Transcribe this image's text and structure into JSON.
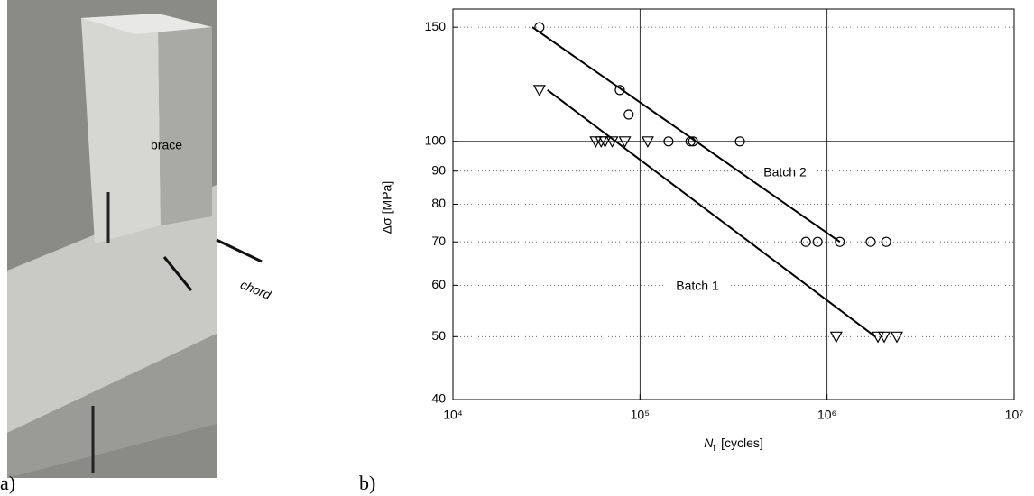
{
  "photo": {
    "brace_label": "brace",
    "chord_label": "chord"
  },
  "panel_labels": [
    "a)",
    "b)"
  ],
  "chart_data": {
    "type": "scatter",
    "x_label": {
      "symbol": "N",
      "subscript": "f",
      "unit": "[cycles]"
    },
    "y_label": "Δσ  [MPa]",
    "xscale": "log",
    "yscale": "log",
    "grid": true,
    "xlim": [
      10000,
      10000000
    ],
    "xticks": [
      {
        "value": 10000,
        "label": "10⁴"
      },
      {
        "value": 100000,
        "label": "10⁵"
      },
      {
        "value": 1000000,
        "label": "10⁶"
      },
      {
        "value": 10000000,
        "label": "10⁷"
      }
    ],
    "ylim": [
      40,
      160
    ],
    "yticks": [
      40,
      50,
      60,
      70,
      80,
      90,
      100,
      150
    ],
    "series": [
      {
        "name": "Batch 2",
        "marker": "circle",
        "color": "#000",
        "x": [
          29000,
          78000,
          87000,
          142000,
          186000,
          192000,
          342000,
          770000,
          890000,
          1170000,
          1710000,
          2070000
        ],
        "values": [
          150,
          120,
          110,
          100,
          100,
          100,
          100,
          70,
          70,
          70,
          70,
          70
        ],
        "fit": {
          "x": [
            26600,
            1170000
          ],
          "values": [
            150,
            70
          ]
        }
      },
      {
        "name": "Batch 1",
        "marker": "triangle-down",
        "color": "#000",
        "x": [
          29000,
          58000,
          62000,
          65000,
          71000,
          83000,
          110000,
          1120000,
          1870000,
          2020000,
          2360000
        ],
        "values": [
          120,
          100,
          100,
          100,
          100,
          100,
          100,
          50,
          50,
          50,
          50
        ],
        "fit": {
          "x": [
            32000,
            1810000
          ],
          "values": [
            120,
            50
          ]
        }
      }
    ]
  }
}
